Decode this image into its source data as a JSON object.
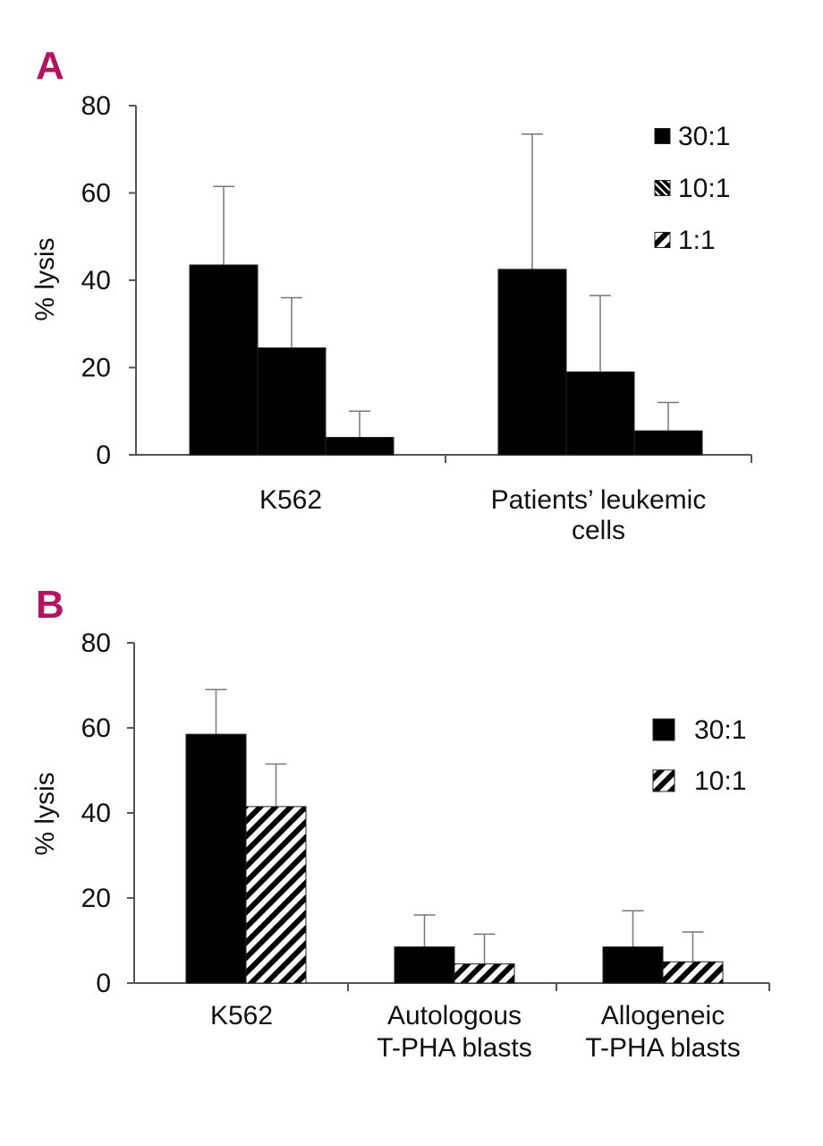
{
  "figure": {
    "accent_color": "#b5125f",
    "bar_color": "#000000"
  },
  "chart_data": [
    {
      "panel_label": "A",
      "type": "bar",
      "ylabel": "% lysis",
      "xlabel": "",
      "ylim": [
        0,
        80
      ],
      "yticks": [
        "0",
        "20",
        "40",
        "60",
        "80"
      ],
      "grid": false,
      "legend_position": "top-right",
      "categories": [
        {
          "lines": [
            "K562"
          ]
        },
        {
          "lines": [
            "Patients’ leukemic",
            "cells"
          ]
        }
      ],
      "series": [
        {
          "name": "30:1",
          "values": [
            43.5,
            42.5
          ],
          "errors": [
            18,
            31
          ],
          "pattern": "solid"
        },
        {
          "name": "10:1",
          "values": [
            24.5,
            19
          ],
          "errors": [
            11.5,
            17.5
          ],
          "pattern": "solid"
        },
        {
          "name": "1:1",
          "values": [
            4,
            5.5
          ],
          "errors": [
            6,
            6.5
          ],
          "pattern": "solid"
        }
      ],
      "legend_patterns": [
        "solid",
        "crosshatch",
        "diagonal"
      ]
    },
    {
      "panel_label": "B",
      "type": "bar",
      "ylabel": "% lysis",
      "xlabel": "",
      "ylim": [
        0,
        80
      ],
      "yticks": [
        "0",
        "20",
        "40",
        "60",
        "80"
      ],
      "grid": false,
      "legend_position": "right",
      "categories": [
        {
          "lines": [
            "K562"
          ]
        },
        {
          "lines": [
            "Autologous",
            "T-PHA blasts"
          ]
        },
        {
          "lines": [
            "Allogeneic",
            "T-PHA blasts"
          ]
        }
      ],
      "series": [
        {
          "name": "30:1",
          "values": [
            58.5,
            8.5,
            8.5
          ],
          "errors": [
            10.5,
            7.5,
            8.5
          ],
          "pattern": "solid"
        },
        {
          "name": "10:1",
          "values": [
            41.5,
            4.5,
            5
          ],
          "errors": [
            10,
            7,
            7
          ],
          "pattern": "diagonal"
        }
      ],
      "legend_patterns": [
        "solid",
        "diagonal"
      ]
    }
  ]
}
